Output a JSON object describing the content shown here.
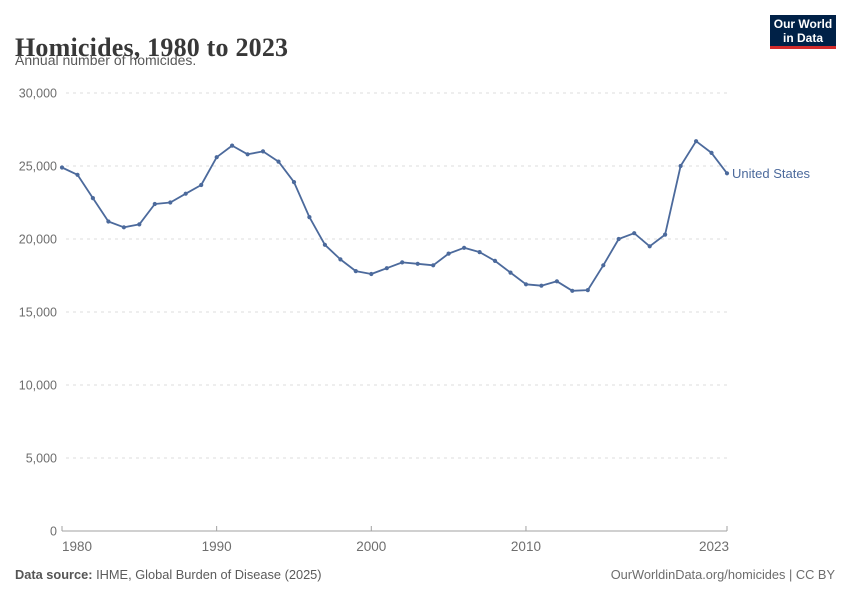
{
  "header": {
    "title": "Homicides, 1980 to 2023",
    "subtitle": "Annual number of homicides."
  },
  "logo": {
    "line1": "Our World",
    "line2": "in Data",
    "bg_color": "#002147",
    "accent_color": "#D42B2B"
  },
  "chart_data": {
    "type": "line",
    "title": "Homicides, 1980 to 2023",
    "x": [
      1980,
      1981,
      1982,
      1983,
      1984,
      1985,
      1986,
      1987,
      1988,
      1989,
      1990,
      1991,
      1992,
      1993,
      1994,
      1995,
      1996,
      1997,
      1998,
      1999,
      2000,
      2001,
      2002,
      2003,
      2004,
      2005,
      2006,
      2007,
      2008,
      2009,
      2010,
      2011,
      2012,
      2013,
      2014,
      2015,
      2016,
      2017,
      2018,
      2019,
      2020,
      2021,
      2022,
      2023
    ],
    "series": [
      {
        "name": "United States",
        "color": "#4C6A9C",
        "values": [
          24900,
          24400,
          22800,
          21200,
          20800,
          21000,
          22400,
          22500,
          23100,
          23700,
          25600,
          26400,
          25800,
          26000,
          25300,
          23900,
          21500,
          19600,
          18600,
          17800,
          17600,
          18000,
          18400,
          18300,
          18200,
          19000,
          19400,
          19100,
          18500,
          17700,
          16900,
          16800,
          17100,
          16450,
          16500,
          18200,
          20000,
          20400,
          19500,
          20300,
          25000,
          26700,
          25900,
          24500
        ]
      }
    ],
    "ylim": [
      0,
      30000
    ],
    "yticks": [
      0,
      5000,
      10000,
      15000,
      20000,
      25000,
      30000
    ],
    "ytick_labels": [
      "0",
      "5,000",
      "10,000",
      "15,000",
      "20,000",
      "25,000",
      "30,000"
    ],
    "xticks": [
      1980,
      1990,
      2000,
      2010,
      2023
    ],
    "xtick_labels": [
      "1980",
      "1990",
      "2000",
      "2010",
      "2023"
    ],
    "grid": "horizontal-dashed",
    "legend_position": "end-of-line",
    "grid_color": "#dcdcdc",
    "axis_color": "#a1a1a1",
    "tick_label_color": "#6e6e6e"
  },
  "footer": {
    "source_label": "Data source:",
    "source_text": " IHME, Global Burden of Disease (2025)",
    "credit": "OurWorldinData.org/homicides | CC BY"
  }
}
